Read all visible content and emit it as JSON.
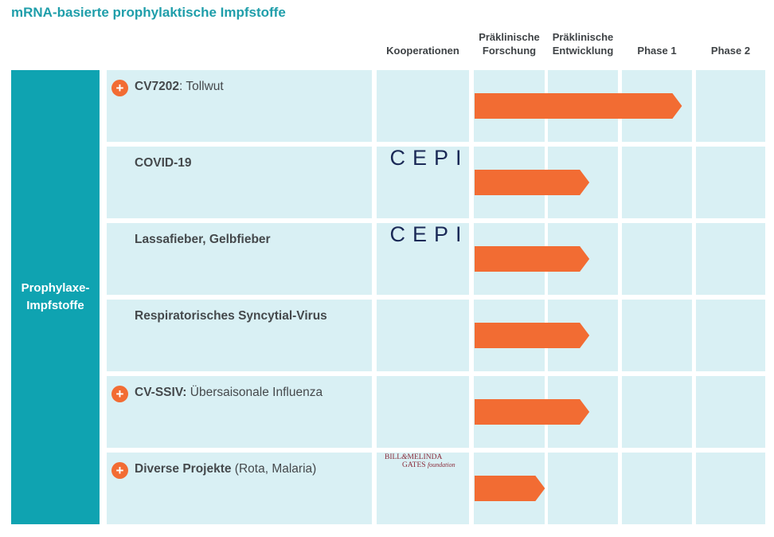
{
  "chart_data": {
    "type": "table",
    "title": "mRNA-basierte prophylaktische Impfstoffe",
    "category_label": "Prophylaxe-\nImpfstoffe",
    "columns": [
      "Kooperationen",
      "Präklinische\nForschung",
      "Präklinische\nEntwicklung",
      "Phase 1",
      "Phase 2"
    ],
    "stage_scale": {
      "min": 0,
      "max": 3,
      "unit": "Phasen-Spalten (Präklinische Forschung = 0–1, Präklinische Entwicklung = 1–2, Phase 1 = 2–3)"
    },
    "rows": [
      {
        "name_bold": "CV7202",
        "name_rest": ": Tollwut",
        "expandable": true,
        "partner": "",
        "progress": 2.8
      },
      {
        "name_bold": "COVID-19",
        "name_rest": "",
        "expandable": false,
        "partner": "CEPI",
        "progress": 1.55
      },
      {
        "name_bold": "Lassafieber, Gelbfieber",
        "name_rest": "",
        "expandable": false,
        "partner": "CEPI",
        "progress": 1.55
      },
      {
        "name_bold": "Respiratorisches Syncytial-Virus",
        "name_rest": "",
        "expandable": false,
        "partner": "",
        "progress": 1.55
      },
      {
        "name_bold": "CV-SSIV:",
        "name_rest": " Übersaisonale Influenza",
        "expandable": true,
        "partner": "",
        "progress": 1.55
      },
      {
        "name_bold": "Diverse Projekte",
        "name_rest": " (Rota, Malaria)",
        "expandable": true,
        "partner": "BILL & MELINDA GATES foundation",
        "progress": 0.95
      }
    ]
  },
  "partners": {
    "cepi_text": "CEPI",
    "gates_line1": "BILL",
    "gates_amp": "&",
    "gates_line1b": "MELINDA",
    "gates_line2": "GATES",
    "gates_line2b": "foundation"
  },
  "icons": {
    "expand": "plus-circle-icon",
    "plus_glyph": "+"
  },
  "colors": {
    "accent": "#1f9eaa",
    "sidebar": "#0fa3b1",
    "cell": "#d9f0f4",
    "bar": "#f26c33",
    "partner_cepi": "#1b2a57",
    "partner_gates": "#8a2b3a"
  }
}
